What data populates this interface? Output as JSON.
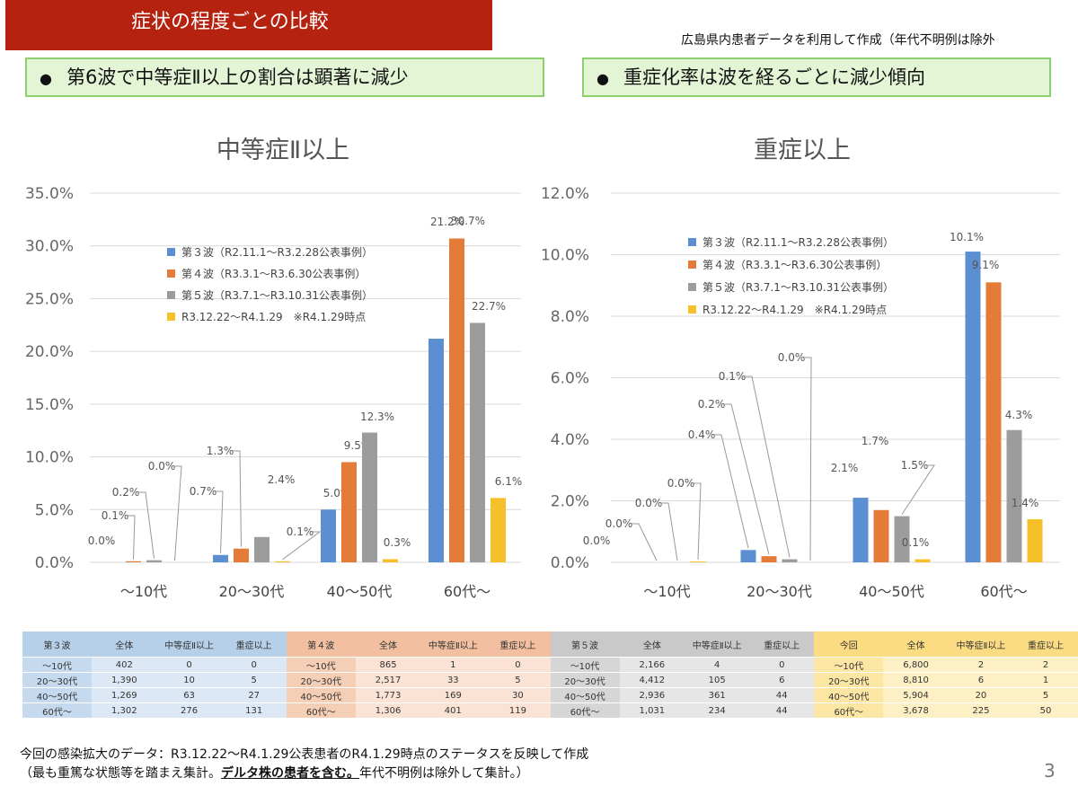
{
  "header": {
    "title": "症状の程度ごとの比較",
    "source_note": "広島県内患者データを利用して作成（年代不明例は除外"
  },
  "callouts": {
    "bullet": "●",
    "left": "第6波で中等症Ⅱ以上の割合は顕著に減少",
    "right": "重症化率は波を経るごとに減少傾向"
  },
  "colors": {
    "wave3": "#5b8fd1",
    "wave4": "#e57b38",
    "wave5": "#9c9c9c",
    "current": "#f6c02a",
    "grid": "#d9d9d9"
  },
  "chart_data": [
    {
      "type": "bar",
      "title": "中等症Ⅱ以上",
      "categories": [
        "〜10代",
        "20〜30代",
        "40〜50代",
        "60代〜"
      ],
      "ylim": [
        0,
        35
      ],
      "yticks": [
        "0.0%",
        "5.0%",
        "10.0%",
        "15.0%",
        "20.0%",
        "25.0%",
        "30.0%",
        "35.0%"
      ],
      "grid": true,
      "legend_position": "top-left",
      "series": [
        {
          "name": "第３波（R2.11.1〜R3.2.28公表事例）",
          "values": [
            0.0,
            0.7,
            5.0,
            21.2
          ],
          "labels": [
            "0.0%",
            "0.7%",
            "5.0%",
            "21.2%"
          ]
        },
        {
          "name": "第４波（R3.3.1〜R3.6.30公表事例）",
          "values": [
            0.1,
            1.3,
            9.5,
            30.7
          ],
          "labels": [
            "0.1%",
            "1.3%",
            "9.5%",
            "30.7%"
          ]
        },
        {
          "name": "第５波（R3.7.1〜R3.10.31公表事例）",
          "values": [
            0.2,
            2.4,
            12.3,
            22.7
          ],
          "labels": [
            "0.2%",
            "2.4%",
            "12.3%",
            "22.7%"
          ]
        },
        {
          "name": "R3.12.22〜R4.1.29　※R4.1.29時点",
          "values": [
            0.0,
            0.1,
            0.3,
            6.1
          ],
          "labels": [
            "0.0%",
            "0.1%",
            "0.3%",
            "6.1%"
          ]
        }
      ]
    },
    {
      "type": "bar",
      "title": "重症以上",
      "categories": [
        "〜10代",
        "20〜30代",
        "40〜50代",
        "60代〜"
      ],
      "ylim": [
        0,
        12
      ],
      "yticks": [
        "0.0%",
        "2.0%",
        "4.0%",
        "6.0%",
        "8.0%",
        "10.0%",
        "12.0%"
      ],
      "grid": true,
      "legend_position": "top-left",
      "series": [
        {
          "name": "第３波（R2.11.1〜R3.2.28公表事例）",
          "values": [
            0.0,
            0.4,
            2.1,
            10.1
          ],
          "labels": [
            "0.0%",
            "0.4%",
            "2.1%",
            "10.1%"
          ]
        },
        {
          "name": "第４波（R3.3.1〜R3.6.30公表事例）",
          "values": [
            0.0,
            0.2,
            1.7,
            9.1
          ],
          "labels": [
            "0.0%",
            "0.2%",
            "1.7%",
            "9.1%"
          ]
        },
        {
          "name": "第５波（R3.7.1〜R3.10.31公表事例）",
          "values": [
            0.0,
            0.1,
            1.5,
            4.3
          ],
          "labels": [
            "0.0%",
            "0.1%",
            "1.5%",
            "4.3%"
          ]
        },
        {
          "name": "R3.12.22〜R4.1.29　※R4.1.29時点",
          "values": [
            0.03,
            0.0,
            0.1,
            1.4
          ],
          "labels": [
            "0.0%",
            "0.0%",
            "0.1%",
            "1.4%"
          ]
        }
      ]
    }
  ],
  "tables": [
    {
      "head": [
        "第３波",
        "全体",
        "中等症Ⅱ以上",
        "重症以上"
      ],
      "rows": [
        [
          "〜10代",
          "402",
          "0",
          "0"
        ],
        [
          "20〜30代",
          "1,390",
          "10",
          "5"
        ],
        [
          "40〜50代",
          "1,269",
          "63",
          "27"
        ],
        [
          "60代〜",
          "1,302",
          "276",
          "131"
        ]
      ],
      "head_bg": "#b7d0ea",
      "body_bg": "#dce8f5",
      "label_bg": "#c5daee"
    },
    {
      "head": [
        "第４波",
        "全体",
        "中等症Ⅱ以上",
        "重症以上"
      ],
      "rows": [
        [
          "〜10代",
          "865",
          "1",
          "0"
        ],
        [
          "20〜30代",
          "2,517",
          "33",
          "5"
        ],
        [
          "40〜50代",
          "1,773",
          "169",
          "30"
        ],
        [
          "60代〜",
          "1,306",
          "401",
          "119"
        ]
      ],
      "head_bg": "#f2bfa0",
      "body_bg": "#fae3d5",
      "label_bg": "#f5ceb6"
    },
    {
      "head": [
        "第５波",
        "全体",
        "中等症Ⅱ以上",
        "重症以上"
      ],
      "rows": [
        [
          "〜10代",
          "2,166",
          "4",
          "0"
        ],
        [
          "20〜30代",
          "4,412",
          "105",
          "6"
        ],
        [
          "40〜50代",
          "2,936",
          "361",
          "44"
        ],
        [
          "60代〜",
          "1,031",
          "234",
          "44"
        ]
      ],
      "head_bg": "#c9c9c9",
      "body_bg": "#e6e6e6",
      "label_bg": "#d6d6d6"
    },
    {
      "head": [
        "今回",
        "全体",
        "中等症Ⅱ以上",
        "重症以上"
      ],
      "rows": [
        [
          "〜10代",
          "6,800",
          "2",
          "2"
        ],
        [
          "20〜30代",
          "8,810",
          "6",
          "1"
        ],
        [
          "40〜50代",
          "5,904",
          "20",
          "5"
        ],
        [
          "60代〜",
          "3,678",
          "225",
          "50"
        ]
      ],
      "head_bg": "#fbdc83",
      "body_bg": "#fdf0c5",
      "label_bg": "#fce6a4"
    }
  ],
  "footer": {
    "line1": "今回の感染拡大のデータ：R3.12.22〜R4.1.29公表患者のR4.1.29時点のステータスを反映して作成",
    "line2_pre": "（最も重篤な状態等を踏まえ集計。",
    "line2_strong": "デルタ株の患者を含む。",
    "line2_post": "年代不明例は除外して集計。）",
    "page_number": "3"
  }
}
